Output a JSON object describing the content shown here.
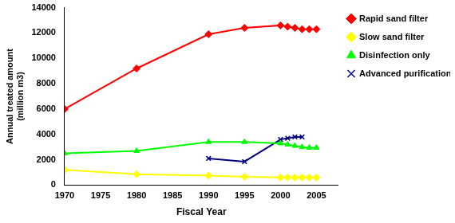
{
  "chart_data": {
    "type": "line",
    "x_label": "Fiscal Year",
    "y_label": [
      "Annual treated amount",
      "(million m3)"
    ],
    "x": [
      1970,
      1980,
      1990,
      1995,
      2000,
      2001,
      2002,
      2003,
      2004,
      2005
    ],
    "xlim": [
      1970,
      2008
    ],
    "xticks": [
      1970,
      1975,
      1980,
      1985,
      1990,
      1995,
      2000,
      2005
    ],
    "ylim": [
      0,
      14000
    ],
    "yticks": [
      0,
      2000,
      4000,
      6000,
      8000,
      10000,
      12000,
      14000
    ],
    "grid": false,
    "legend": "right",
    "series": [
      {
        "name": "Rapid sand filter",
        "color": "#ff0000",
        "marker": "diamond",
        "line_style": "solid",
        "values": [
          6000,
          9200,
          11900,
          12400,
          12600,
          12500,
          12400,
          12300,
          12300,
          12300
        ]
      },
      {
        "name": "Slow sand filter",
        "color": "#ffff00",
        "marker": "diamond",
        "line_style": "solid",
        "values": [
          1200,
          850,
          750,
          650,
          600,
          600,
          600,
          600,
          600,
          600
        ]
      },
      {
        "name": "Disinfection only",
        "color": "#00ff00",
        "marker": "triangle",
        "line_style": "solid",
        "values": [
          2500,
          2700,
          3400,
          3400,
          3300,
          3200,
          3100,
          3000,
          2950,
          2950
        ]
      },
      {
        "name": "Advanced purification",
        "color": "#000080",
        "marker": "x",
        "line_style": "solid",
        "values": [
          null,
          null,
          2100,
          1850,
          3600,
          3700,
          3800,
          3800,
          null,
          null
        ]
      }
    ]
  }
}
